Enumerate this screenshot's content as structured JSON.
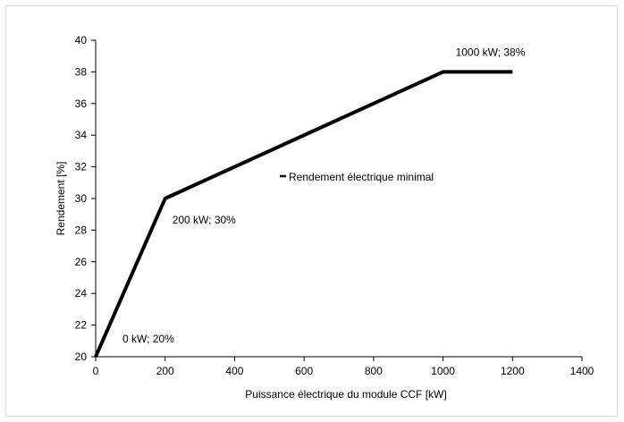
{
  "chart_data": {
    "type": "line",
    "title": "",
    "xlabel": "Puissance électrique du module CCF [kW]",
    "ylabel": "Rendement [%]",
    "xlim": [
      0,
      1400
    ],
    "ylim": [
      20,
      40
    ],
    "xticks": [
      0,
      200,
      400,
      600,
      800,
      1000,
      1200,
      1400
    ],
    "yticks": [
      20,
      22,
      24,
      26,
      28,
      30,
      32,
      34,
      36,
      38,
      40
    ],
    "grid": false,
    "legend_position": "center",
    "series": [
      {
        "name": "Rendement électrique minimal",
        "color": "#000000",
        "points": [
          {
            "x": 0,
            "y": 20
          },
          {
            "x": 200,
            "y": 30
          },
          {
            "x": 1000,
            "y": 38
          },
          {
            "x": 1200,
            "y": 38
          }
        ]
      }
    ],
    "annotations": [
      {
        "text": "0 kW; 20%",
        "x": 0,
        "y": 20
      },
      {
        "text": "200 kW; 30%",
        "x": 200,
        "y": 30
      },
      {
        "text": "1000 kW; 38%",
        "x": 1000,
        "y": 38
      }
    ]
  }
}
